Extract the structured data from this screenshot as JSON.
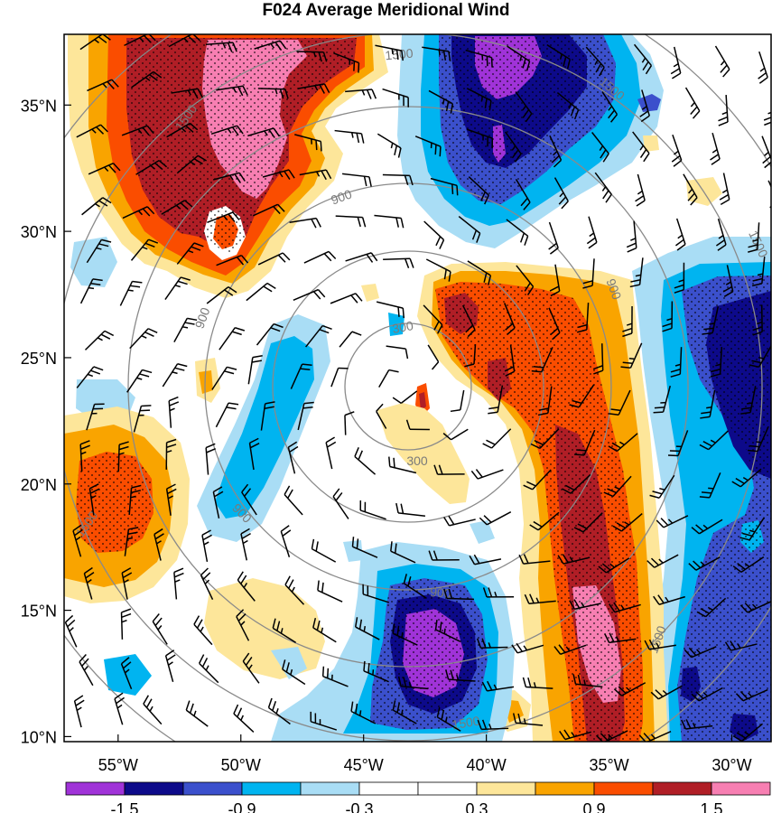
{
  "title": "F024 Average Meridional Wind",
  "chart_data": {
    "type": "heatmap",
    "title": "F024 Average Meridional Wind",
    "lat_ticks": [
      "35°N",
      "30°N",
      "25°N",
      "20°N",
      "15°N",
      "10°N"
    ],
    "lat_values": [
      35,
      30,
      25,
      20,
      15,
      10
    ],
    "lon_ticks": [
      "55°W",
      "50°W",
      "45°W",
      "40°W",
      "35°W",
      "30°W"
    ],
    "lon_values": [
      -55,
      -50,
      -45,
      -40,
      -35,
      -30
    ],
    "xlim": [
      -57.2,
      -28.4
    ],
    "ylim": [
      9.8,
      37.8
    ],
    "colorbar": {
      "colors": [
        "#a033d8",
        "#0d0a8a",
        "#3b50cc",
        "#00b4f0",
        "#a9ddf5",
        "#ffffff",
        "#ffffff",
        "#fde69a",
        "#f9a400",
        "#fa4d00",
        "#b01e26",
        "#f77fb2"
      ],
      "tick_labels": [
        "-1.5",
        "-0.9",
        "-0.3",
        "0.3",
        "0.9",
        "1.5"
      ],
      "tick_values": [
        -1.5,
        -0.9,
        -0.3,
        0.3,
        0.9,
        1.5
      ]
    },
    "range_ring_labels": [
      "300",
      "300",
      "900",
      "900",
      "900",
      "900",
      "900",
      "1500",
      "1500",
      "1500",
      "1500",
      "1500",
      "1500",
      "1500"
    ],
    "range_rings": [
      300,
      600,
      900,
      1200,
      1500,
      1800
    ],
    "stippling": "significant regions stippled",
    "overlay": "wind barbs"
  }
}
